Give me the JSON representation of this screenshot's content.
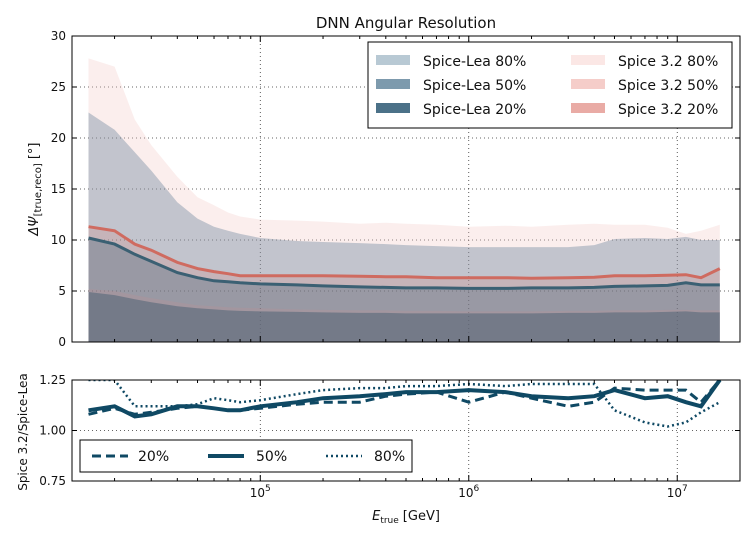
{
  "chart_data": [
    {
      "type": "area",
      "title": "DNN Angular Resolution",
      "ylabel_main": "ΔΨ",
      "ylabel_sub": "[true,reco]",
      "ylabel_unit": "[°]",
      "xscale": "log",
      "xlim": [
        12500,
        20000000
      ],
      "ylim": [
        0,
        30
      ],
      "yticks": [
        0,
        5,
        10,
        15,
        20,
        25,
        30
      ],
      "grid": true,
      "legend_position": "top-right",
      "x": [
        15000,
        20000,
        25000,
        30000,
        40000,
        50000,
        60000,
        70000,
        80000,
        100000,
        150000,
        200000,
        300000,
        400000,
        500000,
        700000,
        1000000,
        1500000,
        2000000,
        3000000,
        4000000,
        5000000,
        7000000,
        9000000,
        11000000,
        13000000,
        16000000
      ],
      "series": [
        {
          "name": "Spice-Lea 80%",
          "color": "#4a6e89",
          "values": [
            22.5,
            20.8,
            18.6,
            16.8,
            13.7,
            12.1,
            11.3,
            10.9,
            10.6,
            10.2,
            9.9,
            9.8,
            9.7,
            9.6,
            9.5,
            9.4,
            9.3,
            9.3,
            9.3,
            9.3,
            9.5,
            10.1,
            10.2,
            10.1,
            10.3,
            10.0,
            10.0
          ]
        },
        {
          "name": "Spice-Lea 50%",
          "color": "#3a6079",
          "values": [
            10.2,
            9.6,
            8.6,
            7.9,
            6.8,
            6.3,
            6.0,
            5.9,
            5.8,
            5.7,
            5.6,
            5.5,
            5.4,
            5.35,
            5.3,
            5.3,
            5.25,
            5.25,
            5.3,
            5.3,
            5.35,
            5.45,
            5.5,
            5.55,
            5.8,
            5.6,
            5.6
          ]
        },
        {
          "name": "Spice-Lea 20%",
          "color": "#35536a",
          "values": [
            4.9,
            4.6,
            4.2,
            3.9,
            3.5,
            3.3,
            3.2,
            3.1,
            3.05,
            3.0,
            2.95,
            2.9,
            2.85,
            2.85,
            2.8,
            2.8,
            2.8,
            2.8,
            2.8,
            2.85,
            2.85,
            2.9,
            2.9,
            2.95,
            3.0,
            2.9,
            2.9
          ]
        },
        {
          "name": "Spice 3.2 80%",
          "color": "#f3c7c3",
          "values": [
            27.8,
            27.0,
            21.8,
            19.3,
            16.2,
            14.2,
            13.4,
            12.7,
            12.3,
            12.0,
            11.9,
            11.8,
            11.6,
            11.7,
            11.6,
            11.5,
            11.3,
            11.4,
            11.3,
            11.5,
            11.6,
            11.5,
            11.5,
            11.2,
            10.6,
            10.9,
            11.5
          ]
        },
        {
          "name": "Spice 3.2 50%",
          "color": "#d57a70",
          "values": [
            11.3,
            10.9,
            9.6,
            9.0,
            7.8,
            7.2,
            6.9,
            6.7,
            6.5,
            6.5,
            6.5,
            6.5,
            6.45,
            6.4,
            6.4,
            6.3,
            6.3,
            6.3,
            6.25,
            6.3,
            6.35,
            6.5,
            6.5,
            6.55,
            6.6,
            6.3,
            7.2
          ]
        },
        {
          "name": "Spice 3.2 20%",
          "color": "#c98f8c",
          "values": [
            5.2,
            5.0,
            4.6,
            4.3,
            3.9,
            3.6,
            3.5,
            3.4,
            3.35,
            3.3,
            3.2,
            3.15,
            3.1,
            3.1,
            3.05,
            3.05,
            3.0,
            3.0,
            3.0,
            3.05,
            3.05,
            3.1,
            3.1,
            3.15,
            3.15,
            3.1,
            3.1
          ]
        }
      ],
      "legend_labels": [
        "Spice-Lea 80%",
        "Spice 3.2 80%",
        "Spice-Lea 50%",
        "Spice 3.2 50%",
        "Spice-Lea 20%",
        "Spice 3.2 20%"
      ]
    },
    {
      "type": "line",
      "ylabel": "Spice 3.2/Spice-Lea",
      "xlabel_main": "E",
      "xlabel_sub": "true",
      "xlabel_unit": "[GeV]",
      "xscale": "log",
      "xlim": [
        12500,
        20000000
      ],
      "ylim": [
        0.75,
        1.25
      ],
      "yticks": [
        "0.75",
        "1.00",
        "1.25"
      ],
      "xticks": [
        {
          "value": 100000,
          "base": "10",
          "exp": "5"
        },
        {
          "value": 1000000,
          "base": "10",
          "exp": "6"
        },
        {
          "value": 10000000,
          "base": "10",
          "exp": "7"
        }
      ],
      "grid": true,
      "legend_position": "bottom-left",
      "color": "#0f4964",
      "x": [
        15000,
        20000,
        25000,
        30000,
        40000,
        50000,
        60000,
        70000,
        80000,
        100000,
        150000,
        200000,
        300000,
        400000,
        500000,
        700000,
        1000000,
        1500000,
        2000000,
        3000000,
        4000000,
        5000000,
        7000000,
        9000000,
        11000000,
        13000000,
        16000000
      ],
      "series": [
        {
          "name": "20%",
          "style": "dashed",
          "values": [
            1.08,
            1.11,
            1.08,
            1.09,
            1.11,
            1.12,
            1.11,
            1.1,
            1.1,
            1.11,
            1.13,
            1.14,
            1.14,
            1.17,
            1.18,
            1.19,
            1.14,
            1.19,
            1.16,
            1.12,
            1.14,
            1.21,
            1.2,
            1.2,
            1.2,
            1.14,
            1.25
          ]
        },
        {
          "name": "50%",
          "style": "solid",
          "values": [
            1.1,
            1.12,
            1.07,
            1.08,
            1.12,
            1.12,
            1.11,
            1.1,
            1.1,
            1.12,
            1.14,
            1.16,
            1.17,
            1.18,
            1.19,
            1.19,
            1.2,
            1.19,
            1.17,
            1.16,
            1.17,
            1.2,
            1.16,
            1.17,
            1.14,
            1.12,
            1.25
          ]
        },
        {
          "name": "80%",
          "style": "dotted",
          "values": [
            1.25,
            1.25,
            1.12,
            1.12,
            1.12,
            1.13,
            1.16,
            1.15,
            1.14,
            1.15,
            1.18,
            1.2,
            1.21,
            1.21,
            1.22,
            1.22,
            1.23,
            1.22,
            1.23,
            1.23,
            1.23,
            1.1,
            1.04,
            1.02,
            1.04,
            1.09,
            1.14
          ]
        }
      ]
    }
  ]
}
